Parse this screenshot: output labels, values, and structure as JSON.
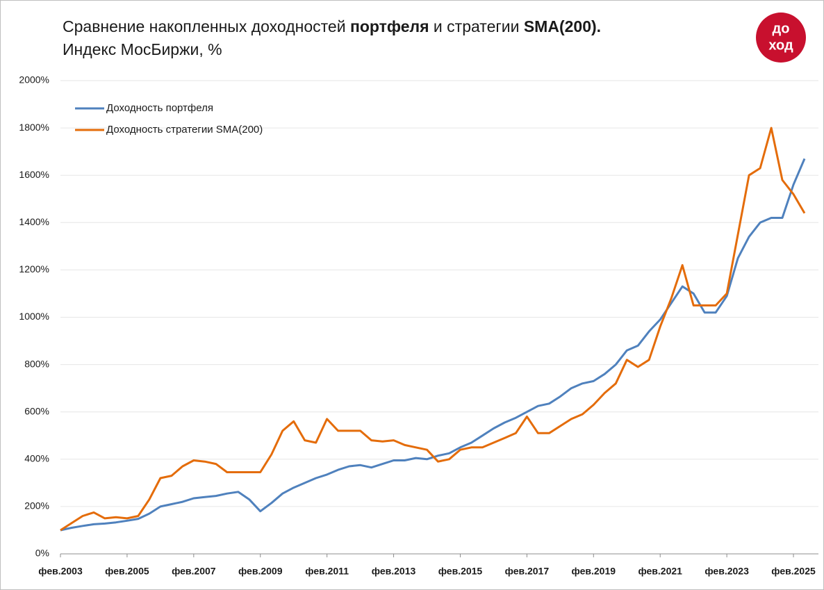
{
  "chart_data": {
    "type": "line",
    "title_parts": [
      "Сравнение накопленных доходностей ",
      "портфеля",
      " и стратегии ",
      "SMA(200)."
    ],
    "subtitle": "Индекс МосБиржи, %",
    "logo_lines": [
      "до",
      "ход"
    ],
    "x": [
      "2003-02",
      "2003-06",
      "2003-10",
      "2004-02",
      "2004-06",
      "2004-10",
      "2005-02",
      "2005-06",
      "2005-10",
      "2006-02",
      "2006-06",
      "2006-10",
      "2007-02",
      "2007-06",
      "2007-10",
      "2008-02",
      "2008-06",
      "2008-10",
      "2009-02",
      "2009-06",
      "2009-10",
      "2010-02",
      "2010-06",
      "2010-10",
      "2011-02",
      "2011-06",
      "2011-10",
      "2012-02",
      "2012-06",
      "2012-10",
      "2013-02",
      "2013-06",
      "2013-10",
      "2014-02",
      "2014-06",
      "2014-10",
      "2015-02",
      "2015-06",
      "2015-10",
      "2016-02",
      "2016-06",
      "2016-10",
      "2017-02",
      "2017-06",
      "2017-10",
      "2018-02",
      "2018-06",
      "2018-10",
      "2019-02",
      "2019-06",
      "2019-10",
      "2020-02",
      "2020-06",
      "2020-10",
      "2021-02",
      "2021-06",
      "2021-10",
      "2022-02",
      "2022-06",
      "2022-10",
      "2023-02",
      "2023-06",
      "2023-10",
      "2024-02",
      "2024-06",
      "2024-10",
      "2025-02",
      "2025-06"
    ],
    "series": [
      {
        "name": "Доходность портфеля",
        "color": "#4f81bd",
        "values": [
          100,
          110,
          118,
          125,
          128,
          133,
          140,
          148,
          170,
          200,
          210,
          220,
          235,
          240,
          245,
          255,
          262,
          230,
          180,
          215,
          255,
          280,
          300,
          320,
          335,
          355,
          370,
          375,
          365,
          380,
          395,
          395,
          405,
          400,
          415,
          425,
          450,
          470,
          500,
          530,
          555,
          575,
          600,
          625,
          635,
          665,
          700,
          720,
          730,
          760,
          800,
          860,
          880,
          940,
          990,
          1060,
          1130,
          1100,
          1020,
          1020,
          1090,
          1250,
          1340,
          1400,
          1420,
          1420,
          1560,
          1670
        ]
      },
      {
        "name": "Доходность стратегии SMA(200)",
        "color": "#e46c0a",
        "values": [
          100,
          130,
          160,
          175,
          150,
          155,
          150,
          160,
          230,
          320,
          330,
          370,
          395,
          390,
          380,
          345,
          345,
          345,
          345,
          420,
          520,
          560,
          480,
          470,
          570,
          520,
          520,
          520,
          480,
          475,
          480,
          460,
          450,
          440,
          390,
          400,
          440,
          450,
          450,
          470,
          490,
          510,
          580,
          510,
          510,
          540,
          570,
          590,
          630,
          680,
          720,
          820,
          790,
          820,
          960,
          1080,
          1220,
          1050,
          1050,
          1050,
          1100,
          1350,
          1600,
          1630,
          1800,
          1580,
          1520,
          1440
        ]
      }
    ],
    "xlim": [
      "2003-02",
      "2025-11"
    ],
    "xticks": [
      {
        "value": "2003-02",
        "label": "фев.2003"
      },
      {
        "value": "2005-02",
        "label": "фев.2005"
      },
      {
        "value": "2007-02",
        "label": "фев.2007"
      },
      {
        "value": "2009-02",
        "label": "фев.2009"
      },
      {
        "value": "2011-02",
        "label": "фев.2011"
      },
      {
        "value": "2013-02",
        "label": "фев.2013"
      },
      {
        "value": "2015-02",
        "label": "фев.2015"
      },
      {
        "value": "2017-02",
        "label": "фев.2017"
      },
      {
        "value": "2019-02",
        "label": "фев.2019"
      },
      {
        "value": "2021-02",
        "label": "фев.2021"
      },
      {
        "value": "2023-02",
        "label": "фев.2023"
      },
      {
        "value": "2025-02",
        "label": "фев.2025"
      }
    ],
    "ylim": [
      0,
      2000
    ],
    "yticks": [
      {
        "value": 0,
        "label": "0%"
      },
      {
        "value": 200,
        "label": "200%"
      },
      {
        "value": 400,
        "label": "400%"
      },
      {
        "value": 600,
        "label": "600%"
      },
      {
        "value": 800,
        "label": "800%"
      },
      {
        "value": 1000,
        "label": "1000%"
      },
      {
        "value": 1200,
        "label": "1200%"
      },
      {
        "value": 1400,
        "label": "1400%"
      },
      {
        "value": 1600,
        "label": "1600%"
      },
      {
        "value": 1800,
        "label": "1800%"
      },
      {
        "value": 2000,
        "label": "2000%"
      }
    ],
    "grid": true,
    "legend": "top-left"
  }
}
